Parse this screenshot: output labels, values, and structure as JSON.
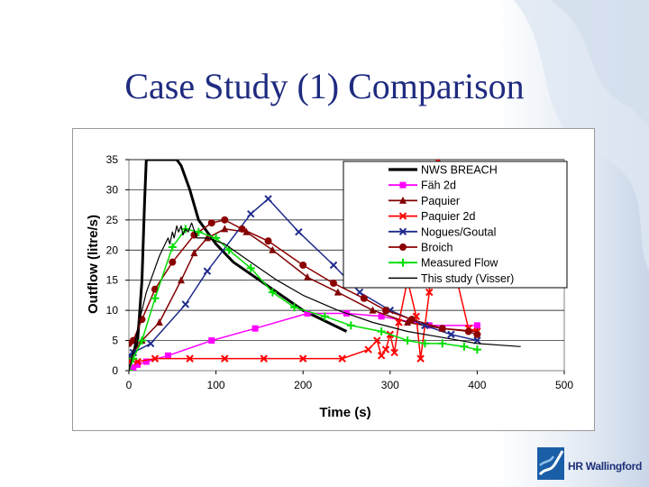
{
  "slide": {
    "title": "Case Study (1) Comparison"
  },
  "logo": {
    "text": "HR Wallingford"
  },
  "chart_data": {
    "type": "line",
    "xlabel": "Time (s)",
    "ylabel": "Outflow (litre/s)",
    "xlim": [
      0,
      500
    ],
    "ylim": [
      0,
      35
    ],
    "xticks": [
      0,
      100,
      200,
      300,
      400,
      500
    ],
    "yticks": [
      0,
      5,
      10,
      15,
      20,
      25,
      30,
      35
    ],
    "grid": "horizontal",
    "legend_position": "top-right",
    "series": [
      {
        "name": "NWS BREACH",
        "color": "#000000",
        "marker": "none",
        "width": 3,
        "x": [
          0,
          10,
          15,
          18,
          20,
          22,
          40,
          55,
          60,
          70,
          80,
          100,
          120,
          150,
          200,
          250
        ],
        "y": [
          0,
          5,
          15,
          28,
          35,
          35,
          35,
          35,
          34,
          30,
          25,
          21,
          18,
          15,
          10,
          6.5
        ]
      },
      {
        "name": "Fäh 2d",
        "color": "#ff00ff",
        "marker": "square",
        "width": 1.5,
        "x": [
          0,
          5,
          10,
          20,
          45,
          95,
          145,
          205,
          250,
          290,
          345,
          400
        ],
        "y": [
          0,
          0.5,
          1,
          1.5,
          2.5,
          5,
          7,
          9.5,
          9.5,
          9,
          7.5,
          7.5
        ]
      },
      {
        "name": "Paquier",
        "color": "#800000",
        "marker": "triangle",
        "width": 1.5,
        "x": [
          0,
          5,
          15,
          35,
          60,
          75,
          90,
          110,
          135,
          165,
          205,
          240,
          280,
          320,
          360,
          400
        ],
        "y": [
          2,
          3,
          5,
          8,
          15,
          19.5,
          22,
          23.5,
          23,
          20,
          15.5,
          13,
          10,
          8,
          7,
          6.5
        ]
      },
      {
        "name": "Paquier 2d",
        "color": "#ff0000",
        "marker": "x",
        "width": 1.5,
        "x": [
          0,
          10,
          30,
          70,
          110,
          155,
          200,
          245,
          275,
          285,
          290,
          295,
          300,
          305,
          310,
          320,
          330,
          335,
          345,
          355,
          360,
          375,
          390,
          400
        ],
        "y": [
          1.5,
          1.5,
          2,
          2,
          2,
          2,
          2,
          2,
          3.5,
          5,
          2.5,
          3.5,
          6,
          3,
          8,
          15,
          9,
          2,
          13,
          35,
          17,
          16,
          7,
          6.5
        ]
      },
      {
        "name": "Nogues/Goutal",
        "color": "#1e2a8c",
        "marker": "x",
        "width": 1.5,
        "x": [
          0,
          5,
          25,
          65,
          90,
          140,
          160,
          195,
          235,
          265,
          300,
          340,
          370,
          400
        ],
        "y": [
          2.5,
          3,
          4.5,
          11,
          16.5,
          26,
          28.5,
          23,
          17.5,
          13,
          10,
          7.5,
          6,
          5
        ]
      },
      {
        "name": "Broich",
        "color": "#8b0000",
        "marker": "circle",
        "width": 1.5,
        "x": [
          0,
          5,
          15,
          30,
          50,
          75,
          95,
          110,
          130,
          160,
          200,
          235,
          270,
          295,
          325,
          360,
          390,
          400
        ],
        "y": [
          4.5,
          5,
          8.5,
          13.5,
          18,
          22.5,
          24.5,
          25,
          23.5,
          21.5,
          17.5,
          14.5,
          12,
          10,
          8.5,
          7,
          6.5,
          6
        ]
      },
      {
        "name": "Measured Flow",
        "color": "#00dd00",
        "marker": "plus",
        "width": 1.5,
        "x": [
          0,
          5,
          15,
          30,
          50,
          65,
          80,
          100,
          115,
          140,
          165,
          190,
          225,
          255,
          290,
          320,
          340,
          360,
          385,
          400
        ],
        "y": [
          0,
          2,
          5,
          12,
          20.5,
          23.5,
          23,
          22,
          20,
          17,
          13,
          10.5,
          9,
          7.5,
          6.5,
          5,
          4.5,
          4.5,
          4,
          3.5
        ]
      },
      {
        "name": "This study (Visser)",
        "color": "#000000",
        "marker": "none",
        "width": 1.2,
        "x": [
          0,
          5,
          10,
          15,
          20,
          25,
          30,
          35,
          40,
          45,
          47,
          50,
          52,
          55,
          57,
          60,
          62,
          65,
          68,
          72,
          78,
          90,
          110,
          140,
          170,
          200,
          240,
          280,
          320,
          360,
          400,
          450
        ],
        "y": [
          0,
          3,
          7,
          10,
          13,
          15,
          17,
          19,
          20.5,
          22,
          21,
          23,
          22,
          24,
          23,
          24,
          22.5,
          23.5,
          23,
          24.5,
          22,
          22,
          21,
          18,
          15,
          12.5,
          10,
          8,
          6.5,
          5.5,
          4.5,
          4
        ]
      }
    ]
  }
}
